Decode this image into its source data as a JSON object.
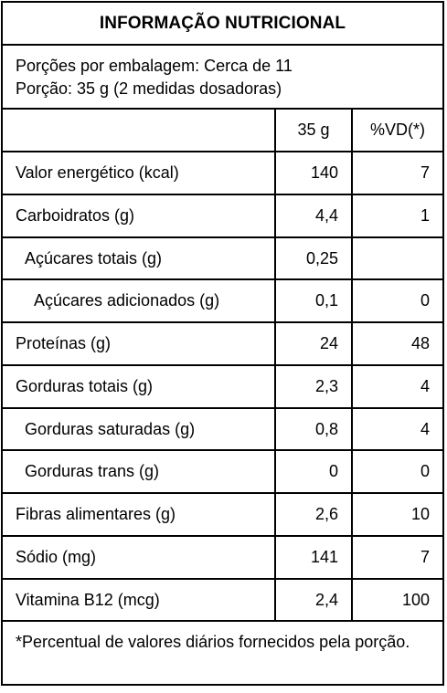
{
  "title": "INFORMAÇÃO NUTRICIONAL",
  "servings": {
    "per_package": "Porções por embalagem: Cerca de 11",
    "portion": "Porção: 35 g (2 medidas dosadoras)"
  },
  "table": {
    "headers": {
      "name": "",
      "qty": "35 g",
      "vd": "%VD(*)"
    },
    "rows": [
      {
        "name": "Valor energético (kcal)",
        "qty": "140",
        "vd": "7",
        "indent": 0
      },
      {
        "name": "Carboidratos (g)",
        "qty": "4,4",
        "vd": "1",
        "indent": 0
      },
      {
        "name": "Açúcares totais (g)",
        "qty": "0,25",
        "vd": "",
        "indent": 1
      },
      {
        "name": "Açúcares adicionados (g)",
        "qty": "0,1",
        "vd": "0",
        "indent": 2
      },
      {
        "name": "Proteínas (g)",
        "qty": "24",
        "vd": "48",
        "indent": 0
      },
      {
        "name": "Gorduras totais (g)",
        "qty": "2,3",
        "vd": "4",
        "indent": 0
      },
      {
        "name": "Gorduras saturadas (g)",
        "qty": "0,8",
        "vd": "4",
        "indent": 1
      },
      {
        "name": "Gorduras trans (g)",
        "qty": "0",
        "vd": "0",
        "indent": 1
      },
      {
        "name": "Fibras alimentares (g)",
        "qty": "2,6",
        "vd": "10",
        "indent": 0
      },
      {
        "name": "Sódio (mg)",
        "qty": "141",
        "vd": "7",
        "indent": 0
      },
      {
        "name": "Vitamina B12 (mcg)",
        "qty": "2,4",
        "vd": "100",
        "indent": 0
      }
    ]
  },
  "footnote": "*Percentual de valores diários fornecidos pela porção."
}
